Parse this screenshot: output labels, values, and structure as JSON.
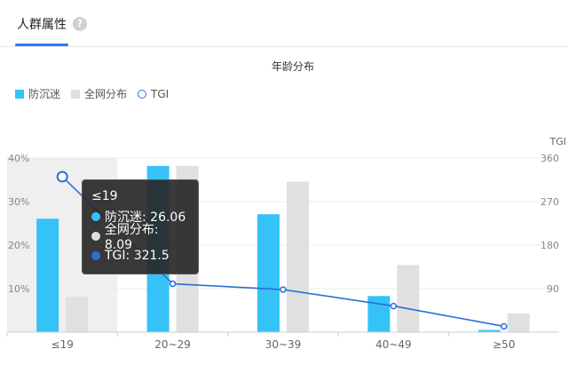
{
  "tab": {
    "label": "人群属性",
    "help_icon": "question-circle-icon",
    "help_glyph": "?"
  },
  "chart_data": {
    "type": "bar",
    "title": "年龄分布",
    "categories": [
      "≤19",
      "20~29",
      "30~39",
      "40~49",
      "≥50"
    ],
    "series": [
      {
        "name": "防沉迷",
        "type": "bar",
        "axis": "left",
        "color": "#35c2f7",
        "values": [
          26.06,
          38.2,
          27.1,
          8.3,
          0.5
        ]
      },
      {
        "name": "全网分布",
        "type": "bar",
        "axis": "left",
        "color": "#e0e0e0",
        "values": [
          8.09,
          38.2,
          34.6,
          15.4,
          4.3
        ]
      },
      {
        "name": "TGI",
        "type": "line",
        "axis": "right",
        "color": "#2b6fd6",
        "values": [
          321.5,
          100,
          88,
          54,
          12
        ]
      }
    ],
    "y_left": {
      "ticks": [
        "10%",
        "20%",
        "30%",
        "40%"
      ],
      "ylim": [
        0,
        40
      ]
    },
    "y_right": {
      "name": "TGI",
      "ticks": [
        "90",
        "180",
        "270",
        "360"
      ],
      "ylim": [
        0,
        360
      ]
    },
    "highlighted_category": "≤19",
    "grid": true,
    "legend_position": "top-left"
  },
  "tooltip": {
    "title": "≤19",
    "rows": [
      {
        "text": "防沉迷: 26.06",
        "color": "#35c2f7"
      },
      {
        "text": "全网分布: 8.09",
        "color": "#e0e0e0"
      },
      {
        "text": "TGI: 321.5",
        "color": "#2b6fd6"
      }
    ]
  }
}
